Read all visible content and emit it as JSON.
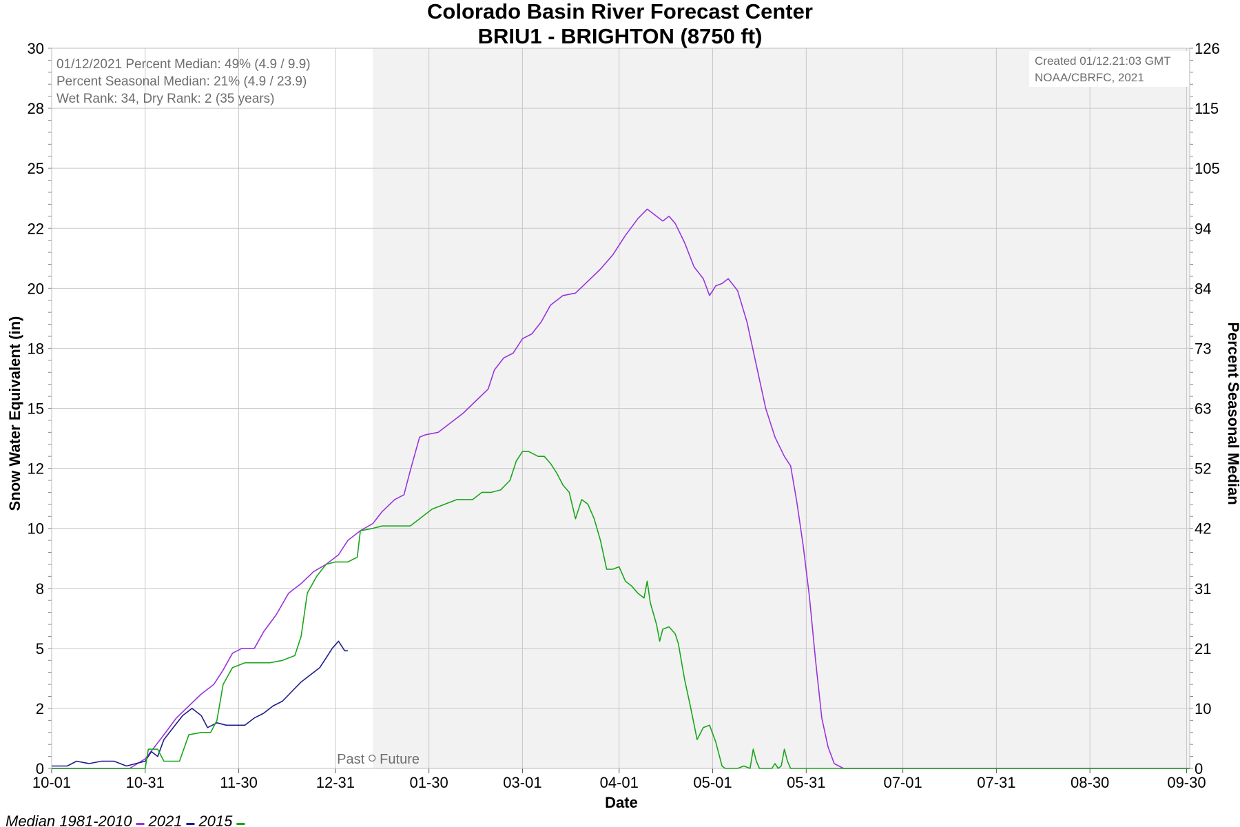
{
  "colors": {
    "median": "#9933dd",
    "y2021": "#1c1c8c",
    "y2015": "#1aa51a",
    "future_bg": "#f2f2f2",
    "grid": "#c8c8c8"
  },
  "chart_data": {
    "type": "line",
    "title": "Colorado Basin River Forecast Center",
    "subtitle": "BRIU1 - BRIGHTON (8750 ft)",
    "xlabel": "Date",
    "ylabel": "Snow Water Equivalent (in)",
    "y2label": "Percent Seasonal Median",
    "ylim": [
      0,
      30
    ],
    "y2lim": [
      0,
      126
    ],
    "xlim_days": [
      0,
      365
    ],
    "x_ticks": [
      {
        "label": "10-01",
        "day": 0
      },
      {
        "label": "10-31",
        "day": 30
      },
      {
        "label": "11-30",
        "day": 60
      },
      {
        "label": "12-31",
        "day": 91
      },
      {
        "label": "01-30",
        "day": 121
      },
      {
        "label": "03-01",
        "day": 151
      },
      {
        "label": "04-01",
        "day": 182
      },
      {
        "label": "05-01",
        "day": 212
      },
      {
        "label": "05-31",
        "day": 242
      },
      {
        "label": "07-01",
        "day": 273
      },
      {
        "label": "07-31",
        "day": 303
      },
      {
        "label": "08-30",
        "day": 333
      },
      {
        "label": "09-30",
        "day": 364
      }
    ],
    "y_ticks": [
      {
        "label": "0",
        "value": 0
      },
      {
        "label": "2",
        "value": 2.5
      },
      {
        "label": "5",
        "value": 5
      },
      {
        "label": "8",
        "value": 7.5
      },
      {
        "label": "10",
        "value": 10
      },
      {
        "label": "12",
        "value": 12.5
      },
      {
        "label": "15",
        "value": 15
      },
      {
        "label": "18",
        "value": 17.5
      },
      {
        "label": "20",
        "value": 20
      },
      {
        "label": "22",
        "value": 22.5
      },
      {
        "label": "25",
        "value": 25
      },
      {
        "label": "28",
        "value": 27.5
      },
      {
        "label": "30",
        "value": 30
      }
    ],
    "y2_ticks": [
      {
        "label": "0",
        "value": 0
      },
      {
        "label": "10",
        "value": 2.5
      },
      {
        "label": "21",
        "value": 5
      },
      {
        "label": "31",
        "value": 7.5
      },
      {
        "label": "42",
        "value": 10
      },
      {
        "label": "52",
        "value": 12.5
      },
      {
        "label": "63",
        "value": 15
      },
      {
        "label": "73",
        "value": 17.5
      },
      {
        "label": "84",
        "value": 20
      },
      {
        "label": "94",
        "value": 22.5
      },
      {
        "label": "105",
        "value": 25
      },
      {
        "label": "115",
        "value": 27.5
      },
      {
        "label": "126",
        "value": 30
      }
    ],
    "today_day": 103,
    "past_future": {
      "past": "Past",
      "future": "Future"
    },
    "info_lines": [
      "01/12/2021 Percent Median: 49% (4.9 / 9.9)",
      "Percent Seasonal Median: 21% (4.9 / 23.9)",
      "Wet Rank: 34, Dry Rank: 2  (35 years)"
    ],
    "credit_lines": [
      "Created 01/12.21:03 GMT",
      "NOAA/CBRFC, 2021"
    ],
    "grid": true,
    "legend_position": "bottom-left",
    "series": [
      {
        "name": "Median 1981-2010",
        "color": "#9933dd",
        "points": [
          [
            0,
            0
          ],
          [
            25,
            0
          ],
          [
            30,
            0.4
          ],
          [
            33,
            0.9
          ],
          [
            36,
            1.4
          ],
          [
            40,
            2.1
          ],
          [
            44,
            2.6
          ],
          [
            48,
            3.1
          ],
          [
            52,
            3.5
          ],
          [
            55,
            4.1
          ],
          [
            58,
            4.8
          ],
          [
            61,
            5
          ],
          [
            65,
            5
          ],
          [
            68,
            5.7
          ],
          [
            72,
            6.4
          ],
          [
            76,
            7.3
          ],
          [
            80,
            7.7
          ],
          [
            84,
            8.2
          ],
          [
            88,
            8.5
          ],
          [
            92,
            8.9
          ],
          [
            95,
            9.5
          ],
          [
            99,
            9.9
          ],
          [
            103,
            10.2
          ],
          [
            106,
            10.7
          ],
          [
            110,
            11.2
          ],
          [
            113,
            11.4
          ],
          [
            115,
            12.4
          ],
          [
            118,
            13.8
          ],
          [
            120,
            13.9
          ],
          [
            124,
            14
          ],
          [
            128,
            14.4
          ],
          [
            132,
            14.8
          ],
          [
            136,
            15.3
          ],
          [
            140,
            15.8
          ],
          [
            142,
            16.6
          ],
          [
            145,
            17.1
          ],
          [
            148,
            17.3
          ],
          [
            151,
            17.9
          ],
          [
            154,
            18.1
          ],
          [
            157,
            18.6
          ],
          [
            160,
            19.3
          ],
          [
            164,
            19.7
          ],
          [
            168,
            19.8
          ],
          [
            172,
            20.3
          ],
          [
            176,
            20.8
          ],
          [
            180,
            21.4
          ],
          [
            184,
            22.2
          ],
          [
            188,
            22.9
          ],
          [
            191,
            23.3
          ],
          [
            194,
            23
          ],
          [
            196,
            22.8
          ],
          [
            198,
            23
          ],
          [
            200,
            22.7
          ],
          [
            203,
            21.9
          ],
          [
            206,
            20.9
          ],
          [
            209,
            20.4
          ],
          [
            211,
            19.7
          ],
          [
            213,
            20.1
          ],
          [
            215,
            20.2
          ],
          [
            217,
            20.4
          ],
          [
            220,
            19.9
          ],
          [
            223,
            18.6
          ],
          [
            226,
            16.8
          ],
          [
            229,
            15
          ],
          [
            232,
            13.8
          ],
          [
            235,
            13
          ],
          [
            237,
            12.6
          ],
          [
            239,
            11.1
          ],
          [
            241,
            9.3
          ],
          [
            243,
            7.2
          ],
          [
            245,
            4.5
          ],
          [
            247,
            2.1
          ],
          [
            249,
            0.9
          ],
          [
            251,
            0.2
          ],
          [
            254,
            0
          ],
          [
            365,
            0
          ]
        ]
      },
      {
        "name": "2021",
        "color": "#1c1c8c",
        "points": [
          [
            0,
            0.1
          ],
          [
            5,
            0.1
          ],
          [
            8,
            0.3
          ],
          [
            12,
            0.2
          ],
          [
            16,
            0.3
          ],
          [
            20,
            0.3
          ],
          [
            24,
            0.1
          ],
          [
            27,
            0.2
          ],
          [
            30,
            0.3
          ],
          [
            32,
            0.7
          ],
          [
            34,
            0.5
          ],
          [
            36,
            1.2
          ],
          [
            39,
            1.7
          ],
          [
            42,
            2.2
          ],
          [
            45,
            2.5
          ],
          [
            48,
            2.2
          ],
          [
            50,
            1.7
          ],
          [
            53,
            1.9
          ],
          [
            56,
            1.8
          ],
          [
            59,
            1.8
          ],
          [
            62,
            1.8
          ],
          [
            65,
            2.1
          ],
          [
            68,
            2.3
          ],
          [
            71,
            2.6
          ],
          [
            74,
            2.8
          ],
          [
            77,
            3.2
          ],
          [
            80,
            3.6
          ],
          [
            83,
            3.9
          ],
          [
            86,
            4.2
          ],
          [
            88,
            4.6
          ],
          [
            90,
            5
          ],
          [
            92,
            5.3
          ],
          [
            94,
            4.9
          ],
          [
            95,
            4.9
          ]
        ]
      },
      {
        "name": "2015",
        "color": "#1aa51a",
        "points": [
          [
            0,
            0
          ],
          [
            30,
            0
          ],
          [
            31,
            0.8
          ],
          [
            34,
            0.8
          ],
          [
            36,
            0.3
          ],
          [
            41,
            0.3
          ],
          [
            44,
            1.4
          ],
          [
            48,
            1.5
          ],
          [
            51,
            1.5
          ],
          [
            53,
            2
          ],
          [
            55,
            3.5
          ],
          [
            58,
            4.2
          ],
          [
            62,
            4.4
          ],
          [
            66,
            4.4
          ],
          [
            70,
            4.4
          ],
          [
            74,
            4.5
          ],
          [
            78,
            4.7
          ],
          [
            80,
            5.5
          ],
          [
            82,
            7.3
          ],
          [
            85,
            8
          ],
          [
            88,
            8.5
          ],
          [
            91,
            8.6
          ],
          [
            95,
            8.6
          ],
          [
            98,
            8.8
          ],
          [
            99,
            9.9
          ],
          [
            103,
            10
          ],
          [
            106,
            10.1
          ],
          [
            115,
            10.1
          ],
          [
            118,
            10.4
          ],
          [
            122,
            10.8
          ],
          [
            126,
            11
          ],
          [
            130,
            11.2
          ],
          [
            135,
            11.2
          ],
          [
            138,
            11.5
          ],
          [
            141,
            11.5
          ],
          [
            144,
            11.6
          ],
          [
            147,
            12
          ],
          [
            149,
            12.8
          ],
          [
            151,
            13.2
          ],
          [
            153,
            13.2
          ],
          [
            156,
            13
          ],
          [
            158,
            13
          ],
          [
            160,
            12.7
          ],
          [
            162,
            12.3
          ],
          [
            164,
            11.8
          ],
          [
            166,
            11.5
          ],
          [
            168,
            10.4
          ],
          [
            170,
            11.2
          ],
          [
            172,
            11
          ],
          [
            174,
            10.4
          ],
          [
            176,
            9.5
          ],
          [
            178,
            8.3
          ],
          [
            180,
            8.3
          ],
          [
            182,
            8.4
          ],
          [
            184,
            7.8
          ],
          [
            186,
            7.6
          ],
          [
            188,
            7.3
          ],
          [
            190,
            7.1
          ],
          [
            191,
            7.8
          ],
          [
            192,
            6.9
          ],
          [
            194,
            6
          ],
          [
            195,
            5.3
          ],
          [
            196,
            5.8
          ],
          [
            198,
            5.9
          ],
          [
            200,
            5.6
          ],
          [
            201,
            5.2
          ],
          [
            203,
            3.7
          ],
          [
            205,
            2.5
          ],
          [
            207,
            1.2
          ],
          [
            209,
            1.7
          ],
          [
            211,
            1.8
          ],
          [
            213,
            1.1
          ],
          [
            215,
            0.1
          ],
          [
            216,
            0
          ],
          [
            220,
            0
          ],
          [
            222,
            0.1
          ],
          [
            224,
            0
          ],
          [
            225,
            0.8
          ],
          [
            226,
            0.3
          ],
          [
            227,
            0
          ],
          [
            231,
            0
          ],
          [
            232,
            0.2
          ],
          [
            233,
            0
          ],
          [
            234,
            0.1
          ],
          [
            235,
            0.8
          ],
          [
            236,
            0.3
          ],
          [
            237,
            0
          ],
          [
            365,
            0
          ]
        ]
      }
    ]
  }
}
